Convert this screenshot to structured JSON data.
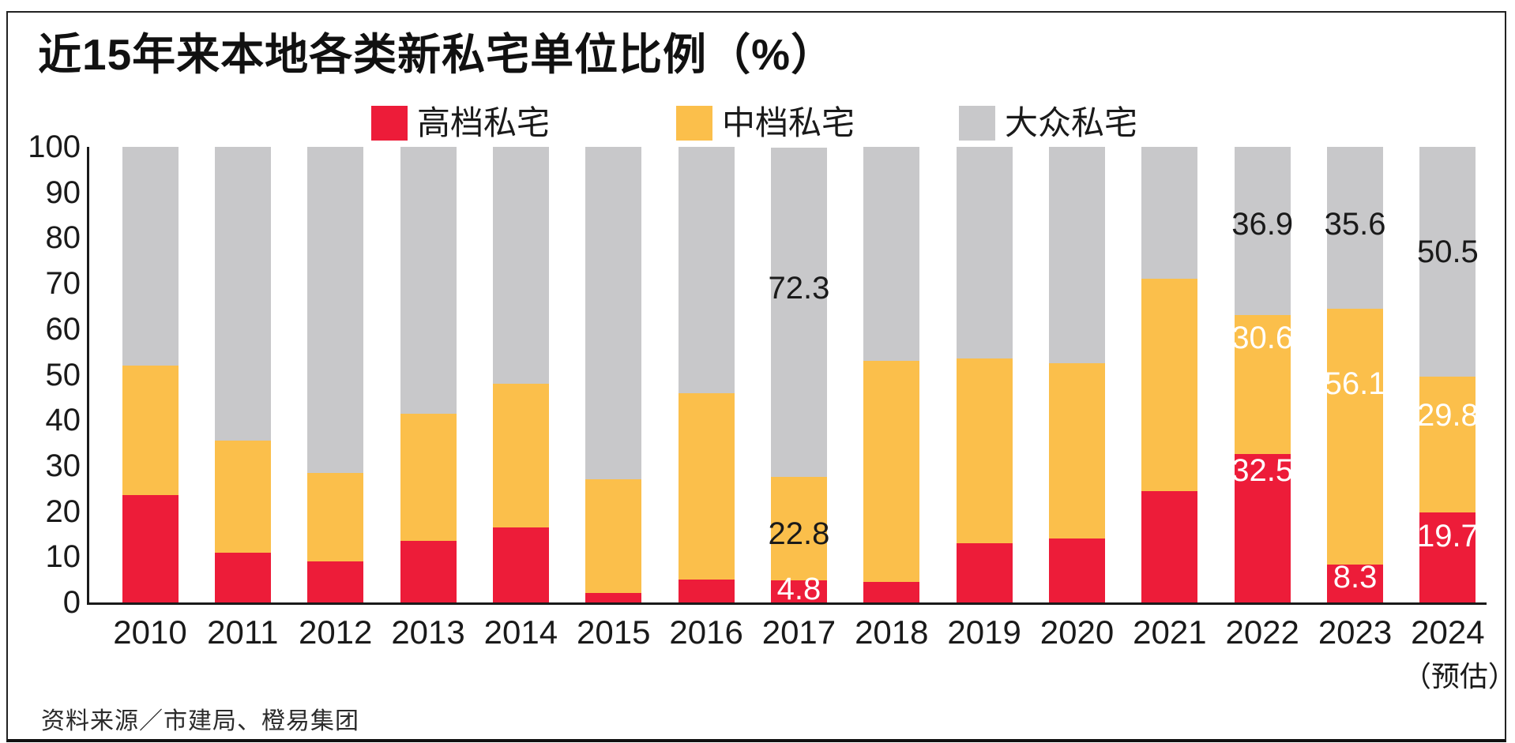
{
  "title": "近15年来本地各类新私宅单位比例（%）",
  "source": "资料来源／市建局、橙易集团",
  "colors": {
    "high_end": "#ED1C39",
    "mid_tier": "#FBBF4B",
    "mass_market": "#C8C8CA",
    "axis": "#1a1a1a",
    "label_dark": "#1a1a1a",
    "label_light": "#ffffff"
  },
  "legend": [
    {
      "id": "high_end",
      "label": "高档私宅"
    },
    {
      "id": "mid_tier",
      "label": "中档私宅"
    },
    {
      "id": "mass_market",
      "label": "大众私宅"
    }
  ],
  "chart_data": {
    "type": "bar",
    "stacked": true,
    "title": "近15年来本地各类新私宅单位比例（%）",
    "categories": [
      "2010",
      "2011",
      "2012",
      "2013",
      "2014",
      "2015",
      "2016",
      "2017",
      "2018",
      "2019",
      "2020",
      "2021",
      "2022",
      "2023",
      "2024"
    ],
    "x_note": {
      "category": "2024",
      "label": "（预估）"
    },
    "ylim": [
      0,
      100
    ],
    "yticks": [
      0,
      10,
      20,
      30,
      40,
      50,
      60,
      70,
      80,
      90,
      100
    ],
    "grid": false,
    "legend_position": "top",
    "series": [
      {
        "name": "高档私宅",
        "color_key": "high_end",
        "values": [
          23.5,
          11,
          9,
          13.5,
          16.5,
          2,
          5,
          4.8,
          4.5,
          13,
          14,
          24.5,
          32.5,
          8.3,
          19.7
        ]
      },
      {
        "name": "中档私宅",
        "color_key": "mid_tier",
        "values": [
          28.5,
          24.5,
          19.5,
          28,
          31.5,
          25,
          41,
          22.8,
          48.5,
          40.5,
          38.5,
          46.5,
          30.6,
          56.1,
          29.8
        ]
      },
      {
        "name": "大众私宅",
        "color_key": "mass_market",
        "values": [
          48,
          64.5,
          71.5,
          58.5,
          52,
          73,
          54,
          72.3,
          47,
          46.5,
          47.5,
          29,
          36.9,
          35.6,
          50.5
        ]
      }
    ],
    "annotations": [
      {
        "category": "2017",
        "text": "72.3",
        "tone": "dark",
        "y": 69
      },
      {
        "category": "2017",
        "text": "22.8",
        "tone": "dark",
        "y": 15
      },
      {
        "category": "2017",
        "text": "4.8",
        "tone": "light",
        "y": 3
      },
      {
        "category": "2022",
        "text": "36.9",
        "tone": "dark",
        "y": 83
      },
      {
        "category": "2022",
        "text": "30.6",
        "tone": "light",
        "y": 58
      },
      {
        "category": "2022",
        "text": "32.5",
        "tone": "light",
        "y": 29
      },
      {
        "category": "2023",
        "text": "35.6",
        "tone": "dark",
        "y": 83
      },
      {
        "category": "2023",
        "text": "56.1",
        "tone": "light",
        "y": 48
      },
      {
        "category": "2023",
        "text": "8.3",
        "tone": "light",
        "y": 5.5
      },
      {
        "category": "2024",
        "text": "50.5",
        "tone": "dark",
        "y": 77
      },
      {
        "category": "2024",
        "text": "29.8",
        "tone": "light",
        "y": 41
      },
      {
        "category": "2024",
        "text": "19.7",
        "tone": "light",
        "y": 14.5
      }
    ]
  }
}
